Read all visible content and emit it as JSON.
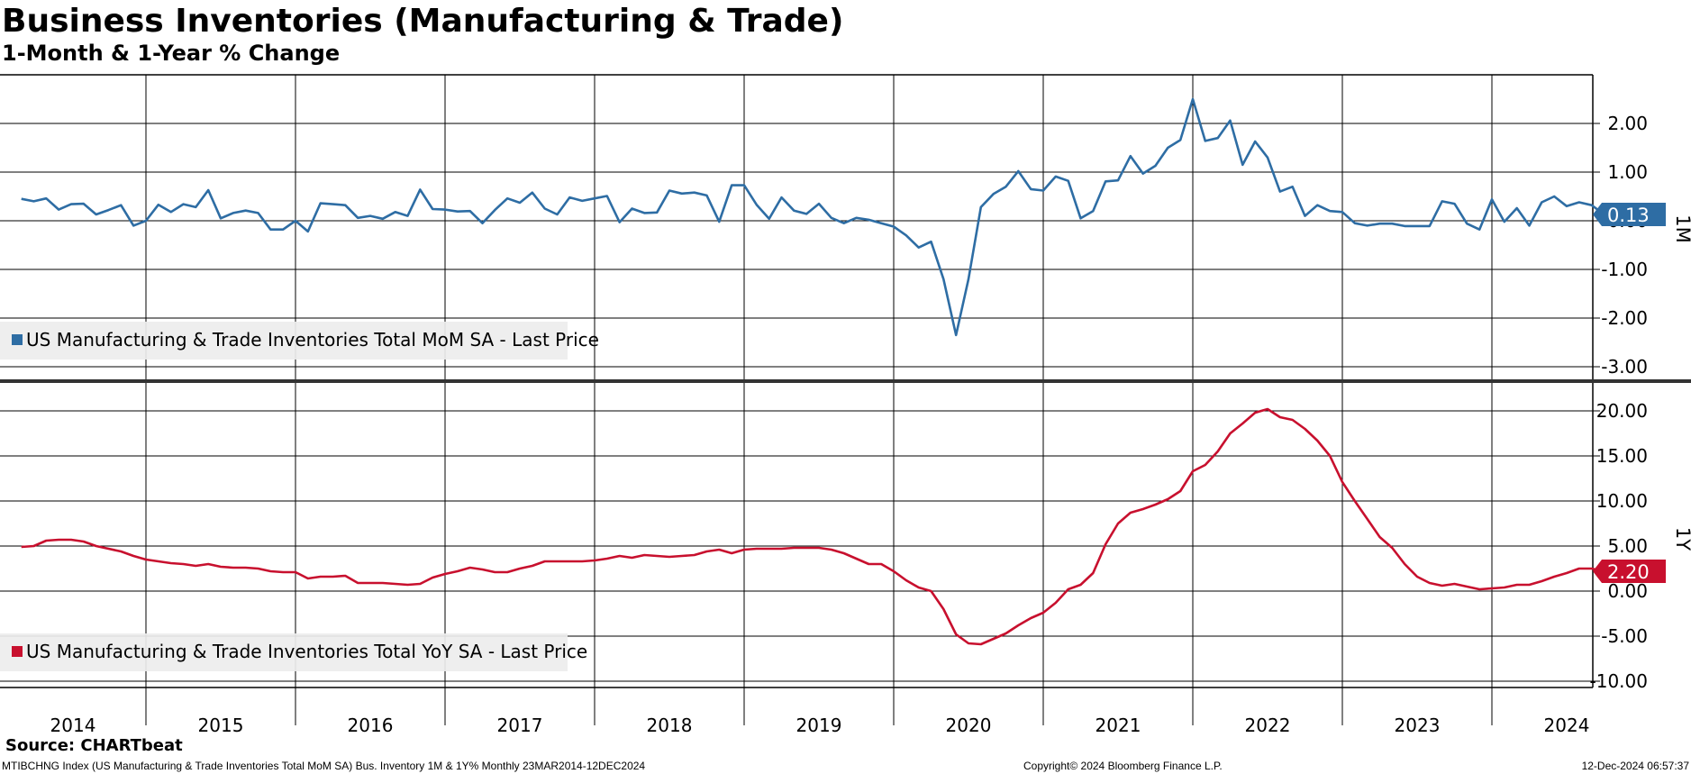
{
  "header": {
    "title": "Business Inventories (Manufacturing & Trade)",
    "subtitle": "1-Month & 1-Year % Change"
  },
  "footer": {
    "source": "Source: CHARTbeat",
    "description": "MTIBCHNG Index (US Manufacturing & Trade Inventories Total MoM SA) Bus. Inventory 1M & 1Y%  Monthly 23MAR2014-12DEC2024",
    "copyright": "Copyright© 2024 Bloomberg Finance L.P.",
    "timestamp": "12-Dec-2024 06:57:37"
  },
  "chart_data": [
    {
      "type": "line",
      "panel_label": "1M",
      "x_start": "2014-03",
      "x_frequency": "monthly",
      "x_tick_labels": [
        "2014",
        "2015",
        "2016",
        "2017",
        "2018",
        "2019",
        "2020",
        "2021",
        "2022",
        "2023",
        "2024"
      ],
      "y_ticks": [
        2,
        1,
        0,
        -1,
        -2,
        -3
      ],
      "y_tick_labels": [
        "2.00",
        "1.00",
        "0.00",
        "-1.00",
        "-2.00",
        "-3.00"
      ],
      "ylim": [
        -3.2,
        3.0
      ],
      "grid": true,
      "legend_position": "bottom-left",
      "series": [
        {
          "name": "US Manufacturing & Trade Inventories Total MoM SA - Last Price",
          "color": "#2e6da4",
          "last_value_label": "0.13",
          "values": [
            0.45,
            0.4,
            0.46,
            0.23,
            0.34,
            0.35,
            0.13,
            0.22,
            0.32,
            -0.1,
            0.0,
            0.33,
            0.18,
            0.34,
            0.28,
            0.63,
            0.05,
            0.16,
            0.21,
            0.16,
            -0.18,
            -0.18,
            0.0,
            -0.22,
            0.36,
            0.34,
            0.32,
            0.06,
            0.1,
            0.04,
            0.18,
            0.1,
            0.64,
            0.24,
            0.23,
            0.19,
            0.2,
            -0.05,
            0.22,
            0.46,
            0.37,
            0.58,
            0.25,
            0.13,
            0.48,
            0.41,
            0.46,
            0.51,
            -0.03,
            0.25,
            0.16,
            0.17,
            0.62,
            0.56,
            0.58,
            0.52,
            -0.02,
            0.73,
            0.73,
            0.33,
            0.04,
            0.48,
            0.21,
            0.14,
            0.35,
            0.06,
            -0.05,
            0.06,
            0.02,
            -0.05,
            -0.12,
            -0.3,
            -0.55,
            -0.43,
            -1.2,
            -2.35,
            -1.2,
            0.28,
            0.55,
            0.7,
            1.02,
            0.65,
            0.62,
            0.91,
            0.82,
            0.05,
            0.2,
            0.81,
            0.83,
            1.33,
            0.97,
            1.13,
            1.5,
            1.66,
            2.5,
            1.64,
            1.7,
            2.06,
            1.15,
            1.63,
            1.3,
            0.6,
            0.7,
            0.1,
            0.32,
            0.2,
            0.18,
            -0.05,
            -0.1,
            -0.06,
            -0.06,
            -0.11,
            -0.11,
            -0.11,
            0.4,
            0.35,
            -0.06,
            -0.18,
            0.44,
            -0.02,
            0.26,
            -0.1,
            0.38,
            0.5,
            0.3,
            0.38,
            0.32,
            0.13
          ]
        }
      ]
    },
    {
      "type": "line",
      "panel_label": "1Y",
      "x_start": "2014-03",
      "x_frequency": "monthly",
      "x_tick_labels": [
        "2014",
        "2015",
        "2016",
        "2017",
        "2018",
        "2019",
        "2020",
        "2021",
        "2022",
        "2023",
        "2024"
      ],
      "y_ticks": [
        20,
        15,
        10,
        5,
        0,
        -5,
        -10
      ],
      "y_tick_labels": [
        "20.00",
        "15.00",
        "10.00",
        "5.00",
        "0.00",
        "-5.00",
        "-10.00"
      ],
      "ylim": [
        -11,
        21.5
      ],
      "grid": true,
      "legend_position": "bottom-left",
      "series": [
        {
          "name": "US Manufacturing & Trade Inventories Total YoY SA - Last Price",
          "color": "#c8102e",
          "last_value_label": "2.20",
          "values": [
            4.9,
            5.0,
            5.6,
            5.7,
            5.7,
            5.5,
            5.0,
            4.7,
            4.4,
            3.9,
            3.5,
            3.3,
            3.1,
            3.0,
            2.8,
            3.0,
            2.7,
            2.6,
            2.6,
            2.5,
            2.2,
            2.1,
            2.1,
            1.4,
            1.6,
            1.6,
            1.7,
            0.9,
            0.9,
            0.9,
            0.8,
            0.7,
            0.8,
            1.5,
            1.9,
            2.2,
            2.6,
            2.4,
            2.1,
            2.1,
            2.5,
            2.8,
            3.3,
            3.3,
            3.3,
            3.3,
            3.4,
            3.6,
            3.9,
            3.7,
            4.0,
            3.9,
            3.8,
            3.9,
            4.0,
            4.4,
            4.6,
            4.2,
            4.6,
            4.7,
            4.7,
            4.7,
            4.8,
            4.8,
            4.8,
            4.6,
            4.2,
            3.6,
            3.0,
            3.0,
            2.2,
            1.2,
            0.4,
            0.0,
            -2.0,
            -4.8,
            -5.8,
            -5.9,
            -5.3,
            -4.7,
            -3.8,
            -3.0,
            -2.4,
            -1.3,
            0.2,
            0.7,
            2.0,
            5.2,
            7.5,
            8.7,
            9.1,
            9.6,
            10.2,
            11.1,
            13.3,
            14.0,
            15.5,
            17.5,
            18.6,
            19.8,
            20.2,
            19.3,
            19.0,
            18.0,
            16.7,
            15.0,
            12.1,
            10.0,
            8.0,
            6.0,
            4.8,
            3.0,
            1.6,
            0.9,
            0.6,
            0.8,
            0.5,
            0.2,
            0.3,
            0.4,
            0.7,
            0.7,
            1.1,
            1.6,
            2.0,
            2.5,
            2.5,
            2.2
          ]
        }
      ]
    }
  ]
}
